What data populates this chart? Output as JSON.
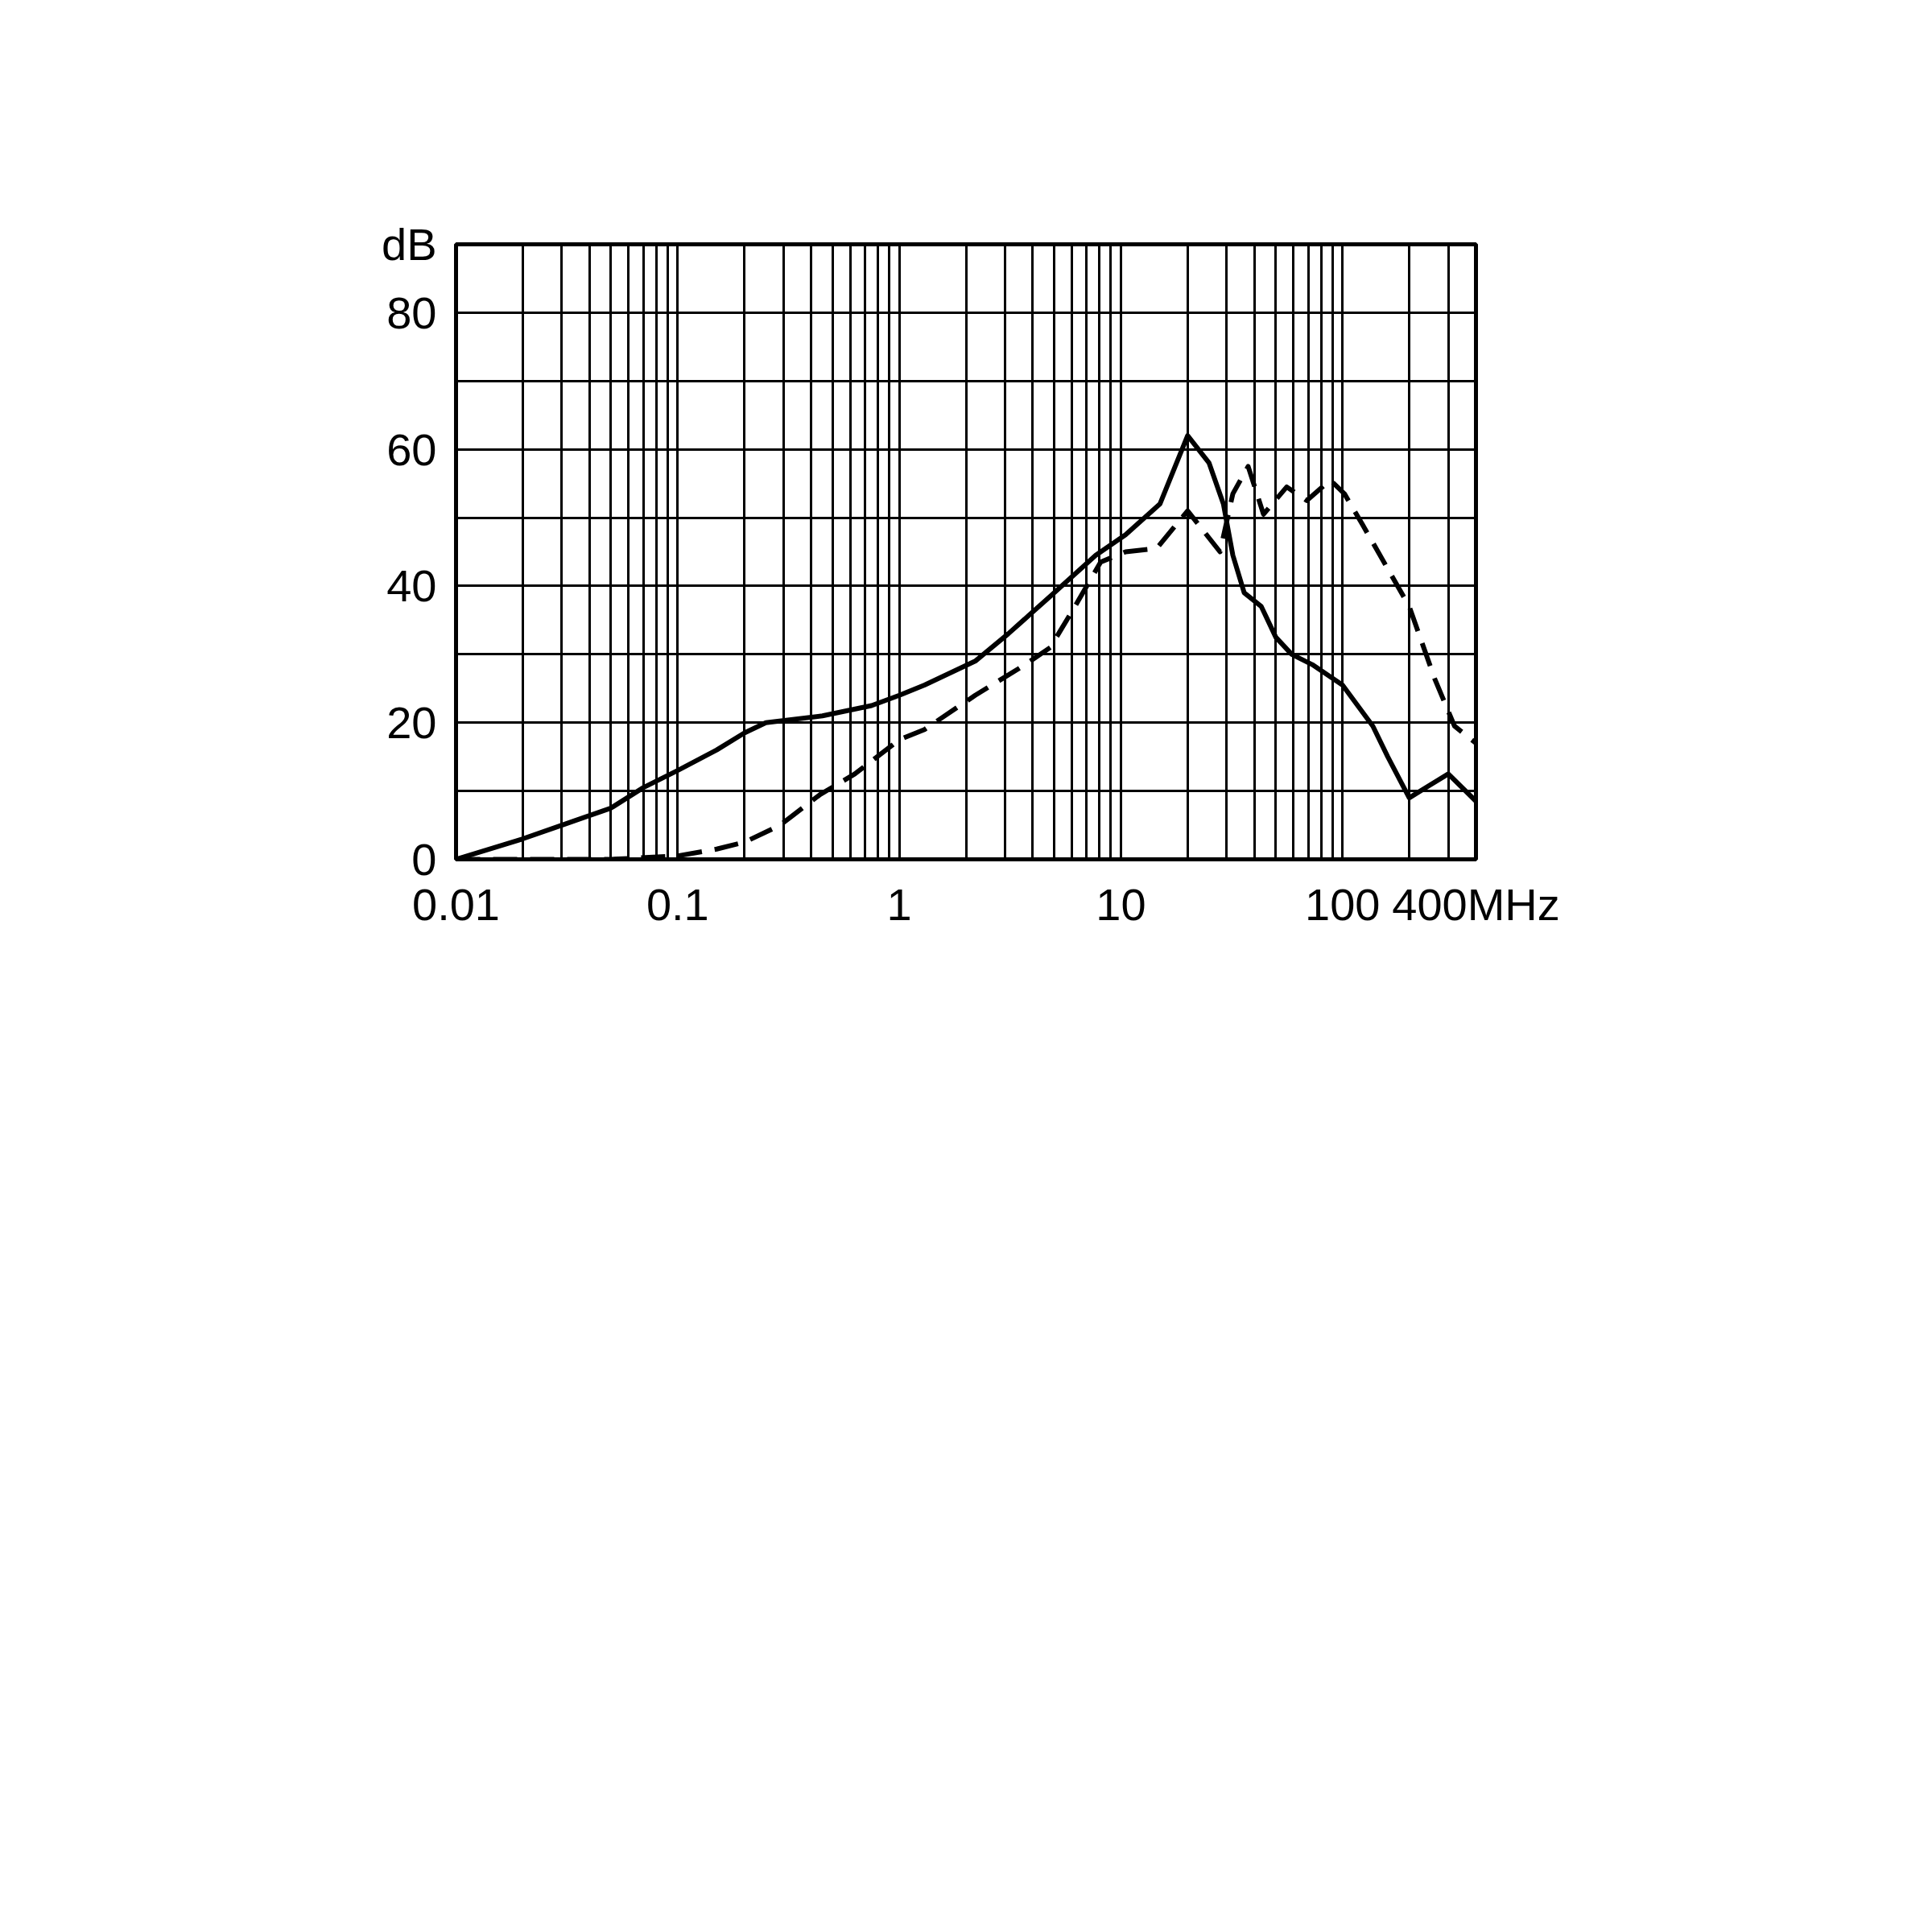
{
  "chart_data": {
    "type": "line",
    "log": "x",
    "grid": true,
    "xlim": [
      0.01,
      400
    ],
    "ylim": [
      0,
      90
    ],
    "xticks": [
      0.01,
      {
        "value": 0.02,
        "label": null
      },
      {
        "value": 0.03,
        "label": null
      },
      {
        "value": 0.04,
        "label": null
      },
      {
        "value": 0.05,
        "label": null
      },
      {
        "value": 0.06,
        "label": null
      },
      {
        "value": 0.07,
        "label": null
      },
      {
        "value": 0.08,
        "label": null
      },
      {
        "value": 0.09,
        "label": null
      },
      0.1,
      {
        "value": 0.2,
        "label": null
      },
      {
        "value": 0.3,
        "label": null
      },
      {
        "value": 0.4,
        "label": null
      },
      {
        "value": 0.5,
        "label": null
      },
      {
        "value": 0.6,
        "label": null
      },
      {
        "value": 0.7,
        "label": null
      },
      {
        "value": 0.8,
        "label": null
      },
      {
        "value": 0.9,
        "label": null
      },
      1,
      {
        "value": 2,
        "label": null
      },
      {
        "value": 3,
        "label": null
      },
      {
        "value": 4,
        "label": null
      },
      {
        "value": 5,
        "label": null
      },
      {
        "value": 6,
        "label": null
      },
      {
        "value": 7,
        "label": null
      },
      {
        "value": 8,
        "label": null
      },
      {
        "value": 9,
        "label": null
      },
      10,
      {
        "value": 20,
        "label": null
      },
      {
        "value": 30,
        "label": null
      },
      {
        "value": 40,
        "label": null
      },
      {
        "value": 50,
        "label": null
      },
      {
        "value": 60,
        "label": null
      },
      {
        "value": 70,
        "label": null
      },
      {
        "value": 80,
        "label": null
      },
      {
        "value": 90,
        "label": null
      },
      100,
      {
        "value": 200,
        "label": null
      },
      {
        "value": 300,
        "label": null
      },
      {
        "value": 400,
        "label": "400MHz"
      }
    ],
    "yticks": [
      0,
      {
        "value": 10,
        "label": null
      },
      20,
      {
        "value": 30,
        "label": null
      },
      40,
      {
        "value": 50,
        "label": null
      },
      60,
      {
        "value": 70,
        "label": null
      },
      80,
      {
        "value": 90,
        "label": "dB"
      }
    ],
    "series": [
      {
        "color": "#000000",
        "line_style": "solid",
        "x": [
          0.01,
          0.02,
          0.03,
          0.05,
          0.07,
          0.1,
          0.15,
          0.2,
          0.25,
          0.45,
          0.75,
          1,
          1.3,
          2.2,
          3.1,
          4.8,
          7.7,
          10.5,
          15,
          20,
          25,
          29,
          32,
          36,
          43,
          50,
          59,
          73,
          100,
          137,
          160,
          200,
          300,
          400
        ],
        "values": [
          0,
          3,
          5,
          7.5,
          10.5,
          13,
          16,
          18.5,
          20,
          21,
          22.5,
          24,
          25.5,
          29,
          33,
          38.5,
          44.5,
          47.5,
          52,
          62,
          58,
          52,
          44.5,
          39,
          37,
          32.5,
          30,
          28.5,
          25.5,
          19.5,
          15,
          9,
          12.5,
          8.5
        ]
      },
      {
        "color": "#000000",
        "line_style": "dashed",
        "x": [
          0.01,
          0.05,
          0.1,
          0.15,
          0.2,
          0.29,
          0.44,
          0.63,
          1,
          1.3,
          2.2,
          3.7,
          4.8,
          6.2,
          8.1,
          10.5,
          14.5,
          20,
          28,
          32,
          37.5,
          44,
          56,
          69,
          88,
          102,
          123,
          200,
          260,
          320,
          400
        ],
        "values": [
          0,
          0,
          0.5,
          1.5,
          2.5,
          5,
          9.5,
          12.5,
          17.5,
          19,
          24,
          28.5,
          31,
          37,
          43.5,
          45,
          45.5,
          51,
          45,
          53.5,
          57.5,
          50.5,
          54.5,
          52.5,
          55.5,
          53.5,
          49,
          37,
          26.5,
          19.5,
          17
        ]
      }
    ]
  }
}
